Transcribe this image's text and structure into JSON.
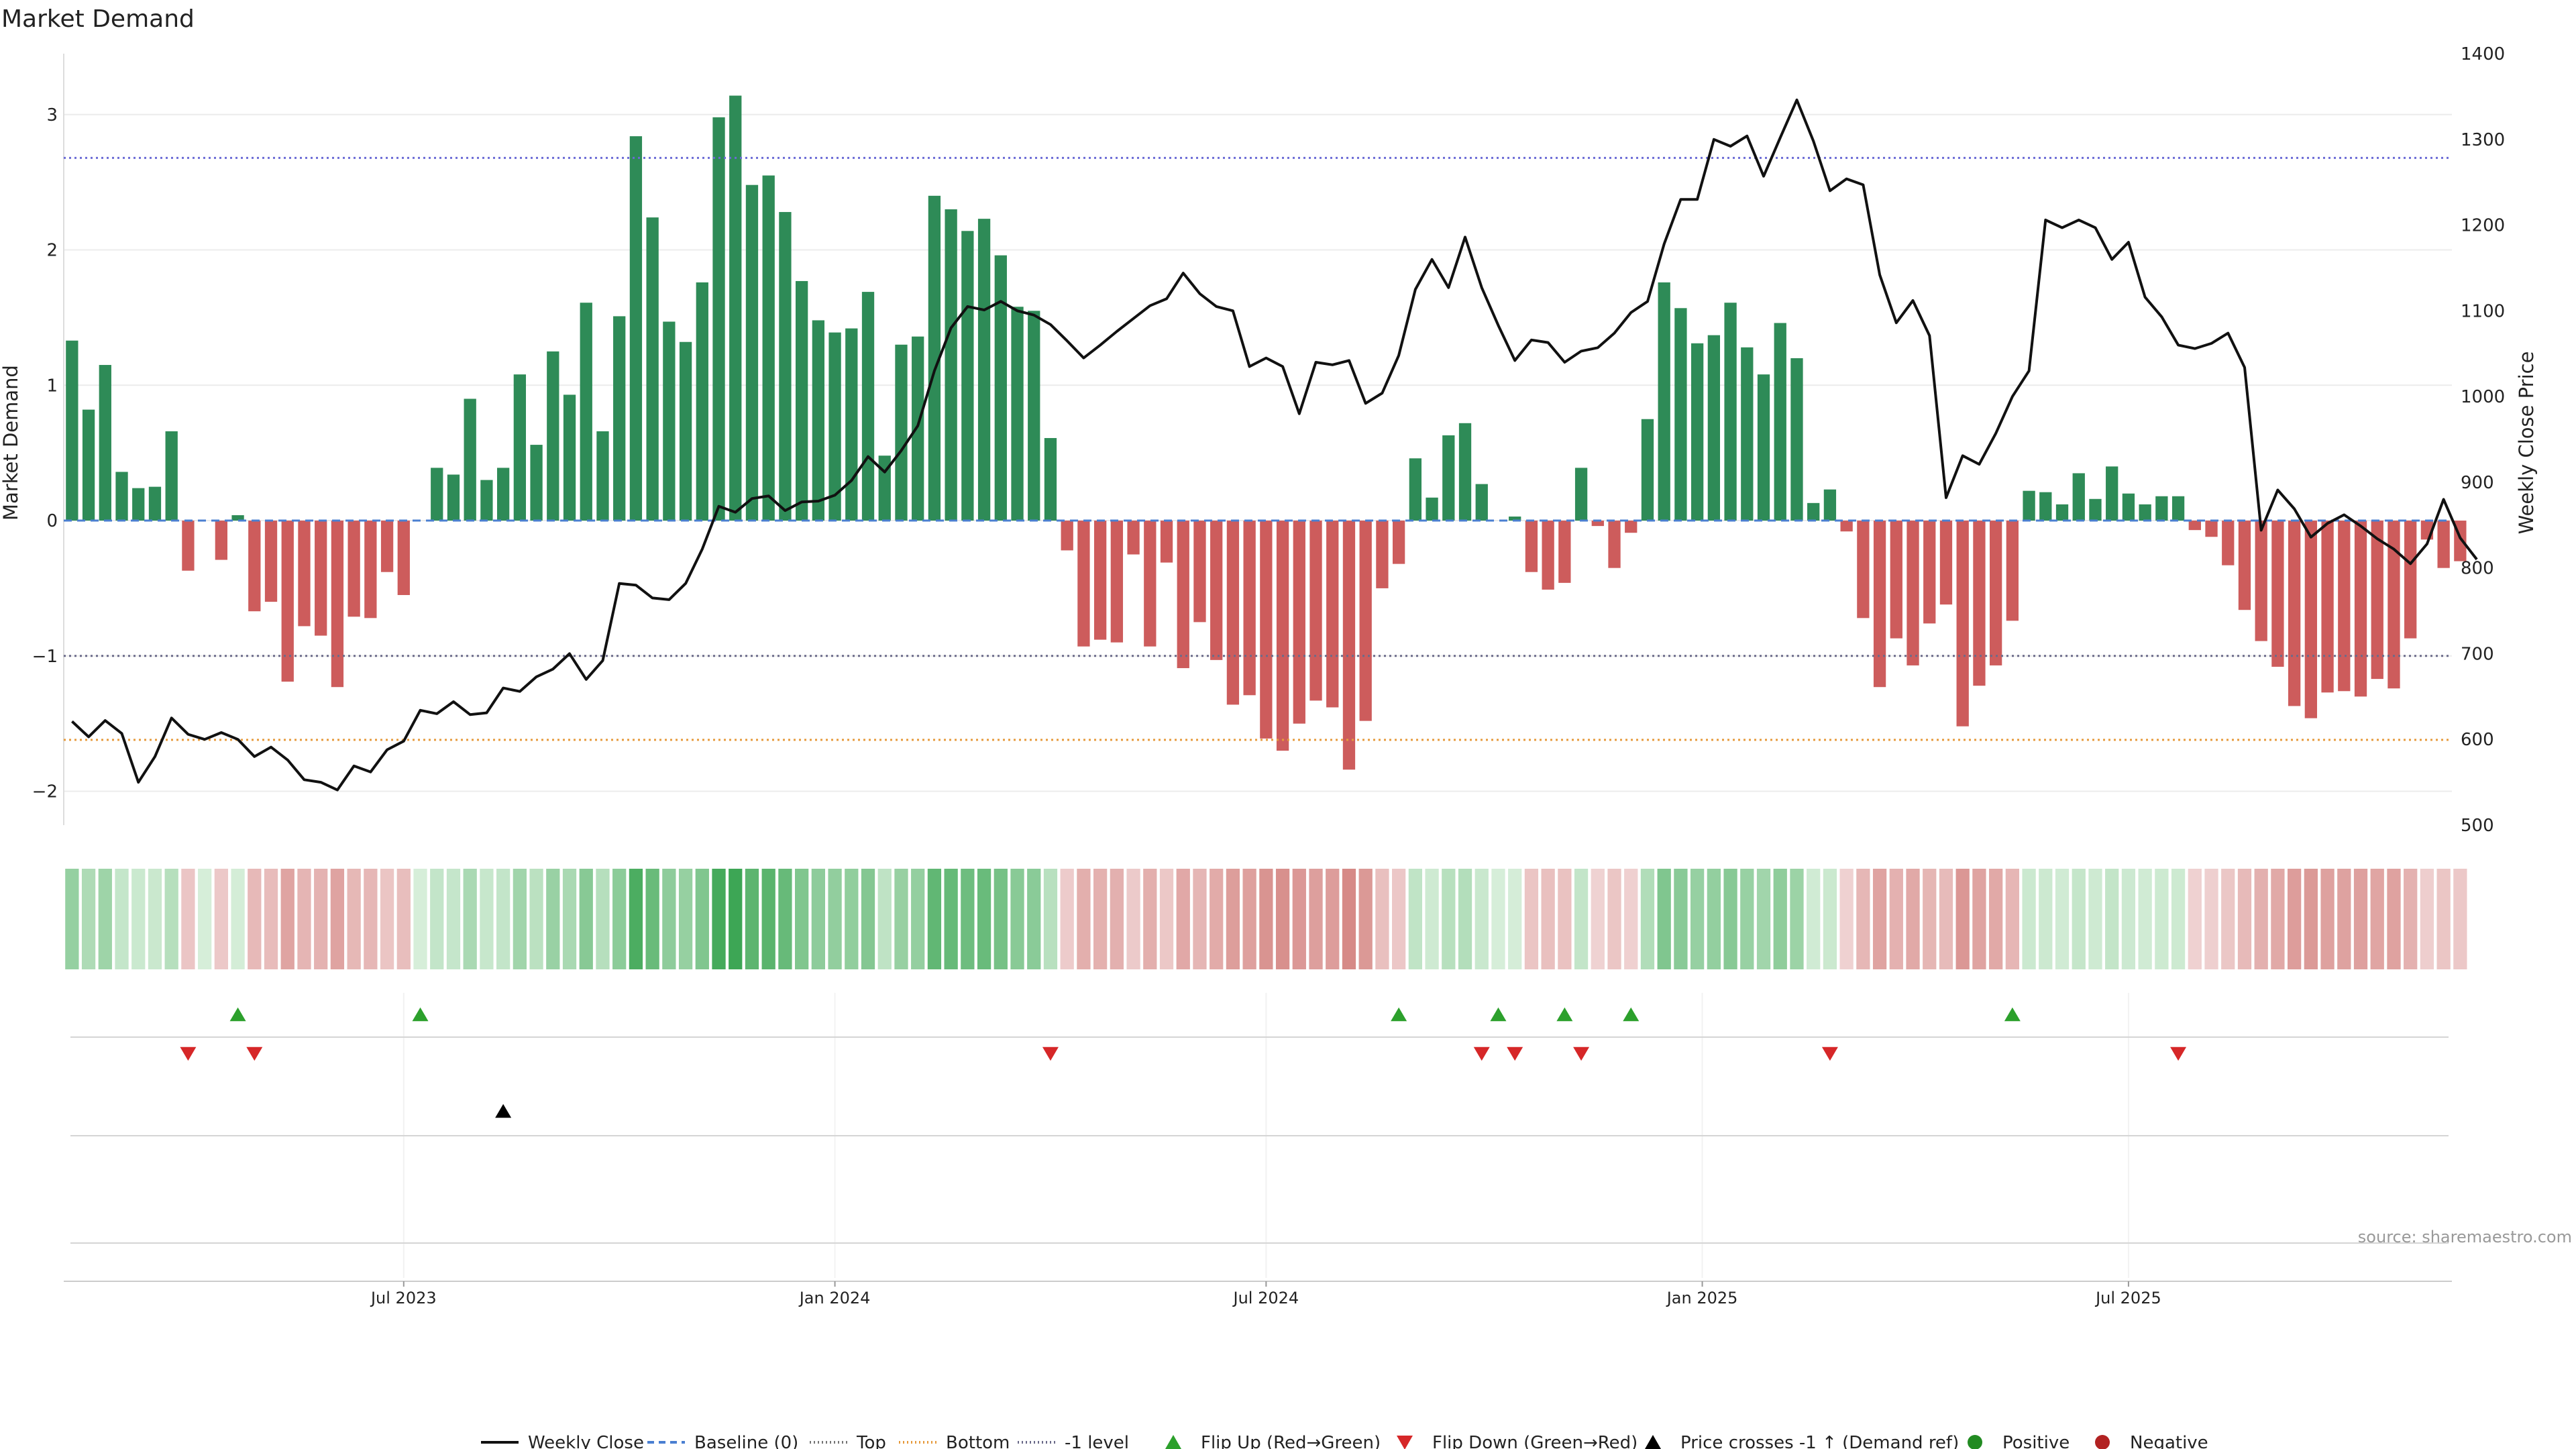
{
  "chart_data": {
    "type": "bar",
    "title": "Market Demand",
    "ylabel_left": "Market Demand",
    "ylabel_right": "Weekly Close Price",
    "ylim_left": [
      -2.25,
      3.45
    ],
    "ylim_right": [
      500,
      1400
    ],
    "yticks_left": [
      {
        "label": "3",
        "v": 3
      },
      {
        "label": "2",
        "v": 2
      },
      {
        "label": "1",
        "v": 1
      },
      {
        "label": "0",
        "v": 0
      },
      {
        "label": "−1",
        "v": -1
      },
      {
        "label": "−2",
        "v": -2
      }
    ],
    "yticks_right": [
      {
        "label": "1400",
        "v": 1400
      },
      {
        "label": "1300",
        "v": 1300
      },
      {
        "label": "1200",
        "v": 1200
      },
      {
        "label": "1100",
        "v": 1100
      },
      {
        "label": "1000",
        "v": 1000
      },
      {
        "label": "900",
        "v": 900
      },
      {
        "label": "800",
        "v": 800
      },
      {
        "label": "700",
        "v": 700
      },
      {
        "label": "600",
        "v": 600
      },
      {
        "label": "500",
        "v": 500
      }
    ],
    "x_start": "2023-02-19",
    "week_count": 144,
    "xticks": [
      {
        "label": "Jul 2023",
        "week": 20
      },
      {
        "label": "Jan 2024",
        "week": 46
      },
      {
        "label": "Jul 2024",
        "week": 72
      },
      {
        "label": "Jan 2025",
        "week": 98.3
      },
      {
        "label": "Jul 2025",
        "week": 124
      }
    ],
    "reference_lines": {
      "top": 2.68,
      "bottom": -1.62,
      "minus_one": -1.0,
      "baseline": 0
    },
    "series": [
      {
        "name": "Market Demand",
        "values": [
          1.33,
          0.82,
          1.15,
          0.36,
          0.24,
          0.25,
          0.66,
          -0.37,
          0.0,
          -0.29,
          0.04,
          -0.67,
          -0.6,
          -1.19,
          -0.78,
          -0.85,
          -1.23,
          -0.71,
          -0.72,
          -0.38,
          -0.55,
          0.0,
          0.39,
          0.34,
          0.9,
          0.3,
          0.39,
          1.08,
          0.56,
          1.25,
          0.93,
          1.61,
          0.66,
          1.51,
          2.84,
          2.24,
          1.47,
          1.32,
          1.76,
          2.98,
          3.14,
          2.48,
          2.55,
          2.28,
          1.77,
          1.48,
          1.39,
          1.42,
          1.69,
          0.48,
          1.3,
          1.36,
          2.4,
          2.3,
          2.14,
          2.23,
          1.96,
          1.58,
          1.55,
          0.61,
          -0.22,
          -0.93,
          -0.88,
          -0.9,
          -0.25,
          -0.93,
          -0.31,
          -1.09,
          -0.75,
          -1.03,
          -1.36,
          -1.29,
          -1.61,
          -1.7,
          -1.5,
          -1.33,
          -1.38,
          -1.84,
          -1.48,
          -0.5,
          -0.32,
          0.46,
          0.17,
          0.63,
          0.72,
          0.27,
          0.0,
          0.03,
          -0.38,
          -0.51,
          -0.46,
          0.39,
          -0.04,
          -0.35,
          -0.09,
          0.75,
          1.76,
          1.57,
          1.31,
          1.37,
          1.61,
          1.28,
          1.08,
          1.46,
          1.2,
          0.13,
          0.23,
          -0.08,
          -0.72,
          -1.23,
          -0.87,
          -1.07,
          -0.76,
          -0.62,
          -1.52,
          -1.22,
          -1.07,
          -0.74,
          0.22,
          0.21,
          0.12,
          0.35,
          0.16,
          0.4,
          0.2,
          0.12,
          0.18,
          0.18,
          -0.07,
          -0.12,
          -0.33,
          -0.66,
          -0.89,
          -1.08,
          -1.37,
          -1.46,
          -1.27,
          -1.26,
          -1.3,
          -1.17,
          -1.24,
          -0.87,
          -0.14,
          -0.35,
          -0.3
        ]
      },
      {
        "name": "Weekly Close",
        "values": [
          621,
          603,
          622,
          607,
          550,
          580,
          625,
          606,
          600,
          608,
          600,
          580,
          591,
          576,
          553,
          550,
          541,
          569,
          562,
          588,
          598,
          634,
          630,
          644,
          629,
          631,
          660,
          656,
          673,
          682,
          700,
          670,
          692,
          782,
          780,
          765,
          763,
          782,
          822,
          872,
          865,
          881,
          884,
          867,
          877,
          878,
          885,
          902,
          930,
          912,
          937,
          966,
          1030,
          1080,
          1105,
          1101,
          1111,
          1100,
          1095,
          1084,
          1065,
          1045,
          1060,
          1076,
          1091,
          1106,
          1114,
          1144,
          1120,
          1105,
          1100,
          1035,
          1045,
          1035,
          980,
          1040,
          1037,
          1042,
          992,
          1004,
          1048,
          1125,
          1160,
          1127,
          1186,
          1127,
          1083,
          1042,
          1066,
          1063,
          1040,
          1053,
          1057,
          1074,
          1098,
          1111,
          1178,
          1230,
          1230,
          1300,
          1292,
          1304,
          1257,
          1302,
          1346,
          1298,
          1240,
          1254,
          1247,
          1142,
          1086,
          1112,
          1071,
          882,
          931,
          921,
          957,
          1000,
          1030,
          1206,
          1197,
          1206,
          1197,
          1160,
          1180,
          1116,
          1093,
          1060,
          1056,
          1062,
          1074,
          1034,
          844,
          891,
          869,
          836,
          852,
          862,
          849,
          834,
          822,
          805,
          828,
          880,
          835,
          810
        ]
      }
    ],
    "heat_strip": {
      "type": "heatmap",
      "label": "Market Demand heat strip",
      "uses_series": "Market Demand"
    },
    "events": {
      "flip_up_weeks": [
        10,
        21,
        80,
        86,
        90,
        94,
        117
      ],
      "flip_down_weeks": [
        7,
        11,
        59,
        85,
        87,
        91,
        106,
        127
      ],
      "price_cross_weeks": [
        26
      ]
    },
    "legend": {
      "position": "bottom-center",
      "items": [
        {
          "label": "Weekly Close",
          "kind": "line",
          "color": "#111111",
          "dash": ""
        },
        {
          "label": "Baseline (0)",
          "kind": "line",
          "color": "#4a7fd1",
          "dash": "10 7"
        },
        {
          "label": "Top",
          "kind": "line",
          "color": "#777777",
          "dash": "2 4"
        },
        {
          "label": "Bottom",
          "kind": "line",
          "color": "#e69a3c",
          "dash": "2 4"
        },
        {
          "label": "-1 level",
          "kind": "line",
          "color": "#6b6b8a",
          "dash": "2 4"
        },
        {
          "label": "Flip Up (Red→Green)",
          "kind": "tri-up",
          "color": "#2ca02c"
        },
        {
          "label": "Flip Down (Green→Red)",
          "kind": "tri-down",
          "color": "#d62728"
        },
        {
          "label": "Price crosses -1 ↑ (Demand ref)",
          "kind": "tri-up",
          "color": "#000000"
        },
        {
          "label": "Positive",
          "kind": "dot",
          "color": "#228b22"
        },
        {
          "label": "Negative",
          "kind": "dot",
          "color": "#b22222"
        }
      ]
    },
    "source_note": "source: sharemaestro.com"
  },
  "colors": {
    "positive_bar": "#2e8b57",
    "negative_bar": "#cd5c5c",
    "price_line": "#111111",
    "top_line": "#6b6bd6",
    "bottom_line": "#e69a3c",
    "minus_one_line": "#6b6b8a",
    "baseline": "#4a7fd1",
    "flip_up": "#2ca02c",
    "flip_down": "#d62728",
    "price_cross": "#000000",
    "grid": "#ececec",
    "axis_text": "#222222",
    "source_text": "#999999"
  }
}
